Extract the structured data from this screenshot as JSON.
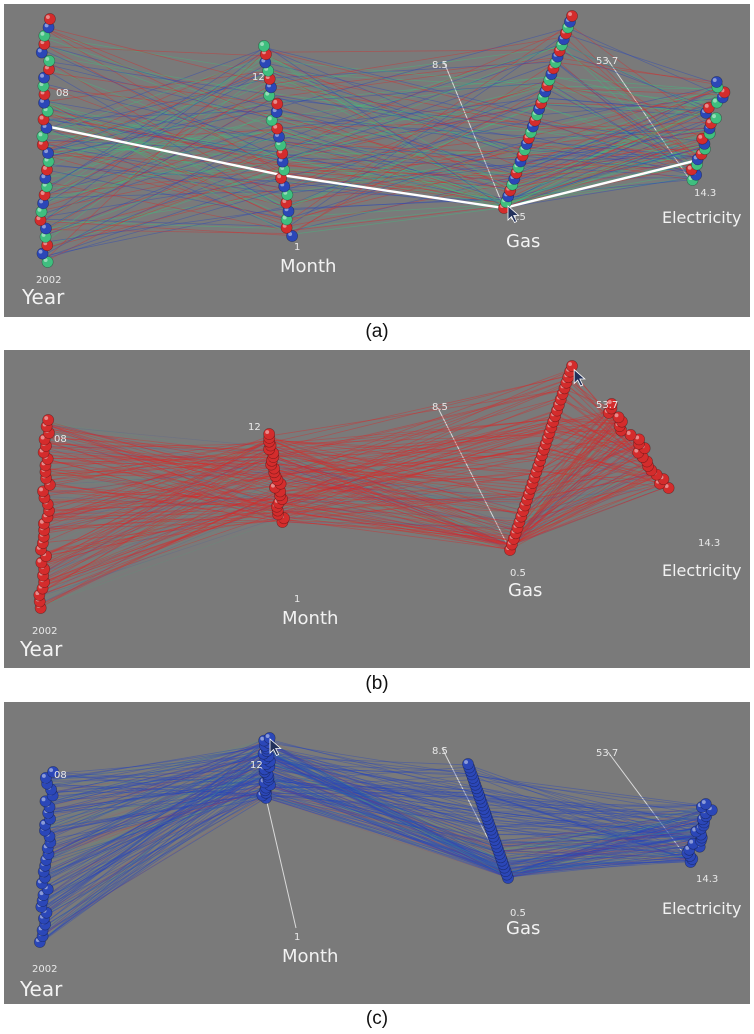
{
  "colors": {
    "background": "#7a7a7a",
    "red": "#d42c2c",
    "green": "#3fbf7f",
    "blue": "#2b47b8",
    "highlight": "#ffffff"
  },
  "chart_data": [
    {
      "type": "parallel-coordinates-3d",
      "panel_label": "(a)",
      "axes": [
        {
          "name": "Year",
          "min_label": "2002",
          "max_label": "08"
        },
        {
          "name": "Month",
          "min_label": "1",
          "max_label": "12"
        },
        {
          "name": "Gas",
          "min_label": "0.5",
          "max_label": "8.5"
        },
        {
          "name": "Electricity",
          "min_label": "14.3",
          "max_label": "53.7"
        }
      ],
      "visible_groups": [
        "red",
        "green",
        "blue"
      ],
      "highlighted_polyline": true,
      "cursor_on": "Gas"
    },
    {
      "type": "parallel-coordinates-3d",
      "panel_label": "(b)",
      "axes": [
        {
          "name": "Year",
          "min_label": "2002",
          "max_label": "08"
        },
        {
          "name": "Month",
          "min_label": "1",
          "max_label": "12"
        },
        {
          "name": "Gas",
          "min_label": "0.5",
          "max_label": "8.5"
        },
        {
          "name": "Electricity",
          "min_label": "14.3",
          "max_label": "53.7"
        }
      ],
      "visible_groups": [
        "red"
      ],
      "highlighted_polyline": false,
      "cursor_on": "Gas"
    },
    {
      "type": "parallel-coordinates-3d",
      "panel_label": "(c)",
      "axes": [
        {
          "name": "Year",
          "min_label": "2002",
          "max_label": "08"
        },
        {
          "name": "Month",
          "min_label": "1",
          "max_label": "12"
        },
        {
          "name": "Gas",
          "min_label": "0.5",
          "max_label": "8.5"
        },
        {
          "name": "Electricity",
          "min_label": "14.3",
          "max_label": "53.7"
        }
      ],
      "visible_groups": [
        "blue"
      ],
      "highlighted_polyline": false,
      "cursor_on": "Month"
    }
  ]
}
